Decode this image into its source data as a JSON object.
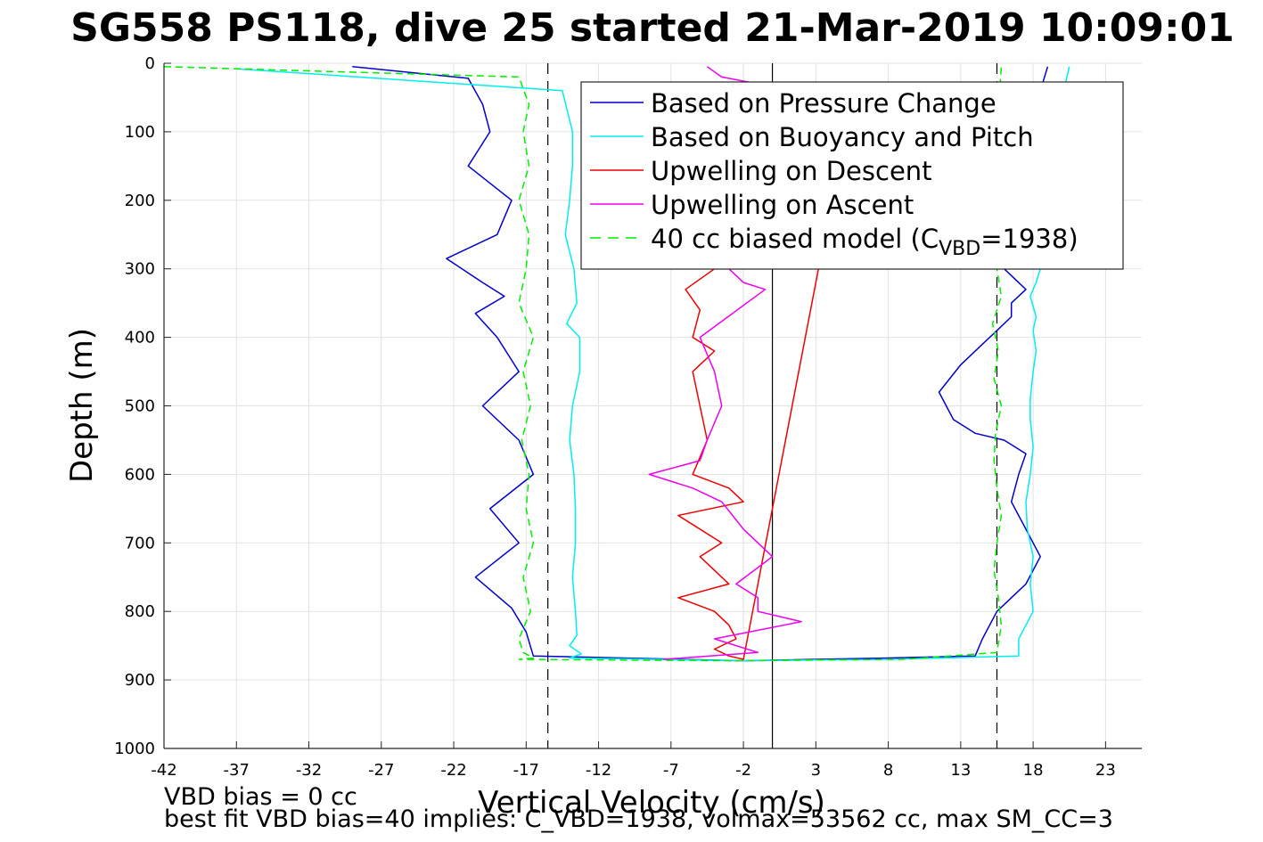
{
  "chart_data": {
    "type": "line",
    "title": "SG558 PS118, dive 25 started 21-Mar-2019 10:09:01",
    "xlabel": "Vertical Velocity (cm/s)",
    "ylabel": "Depth (m)",
    "xlim": [
      -42,
      25.5
    ],
    "ylim": [
      0,
      1000
    ],
    "y_reversed": true,
    "grid": true,
    "x_ticks": [
      "-42",
      "-37",
      "-32",
      "-27",
      "-22",
      "-17",
      "-12",
      "-7",
      "-2",
      "3",
      "8",
      "13",
      "18",
      "23"
    ],
    "y_ticks": [
      "0",
      "100",
      "200",
      "300",
      "400",
      "500",
      "600",
      "700",
      "800",
      "900",
      "1000"
    ],
    "legend_position": "top-right",
    "reference_lines": [
      {
        "x": 0,
        "style": "solid",
        "color": "#000000"
      },
      {
        "x": -15.5,
        "style": "dashed",
        "color": "#000000"
      },
      {
        "x": 15.5,
        "style": "dashed",
        "color": "#000000"
      }
    ],
    "legend": [
      {
        "text": "Based on Pressure Change",
        "color": "#0000cc",
        "style": "solid"
      },
      {
        "text": "Based on Buoyancy and Pitch",
        "color": "#00eeee",
        "style": "solid"
      },
      {
        "text": "Upwelling on Descent",
        "color": "#ee0000",
        "style": "solid"
      },
      {
        "text": "Upwelling on Ascent",
        "color": "#ee00ee",
        "style": "solid"
      },
      {
        "text_before": "40 cc biased model (C",
        "subscript": "VBD",
        "text_after": "=1938)",
        "color": "#00ee00",
        "style": "dashed"
      }
    ],
    "series": [
      {
        "name": "Based on Pressure Change",
        "color": "#0000cc",
        "dash": false,
        "width": 1.5,
        "x": [
          -29,
          -21,
          -20,
          -19.5,
          -21,
          -18,
          -19,
          -22.5,
          -20,
          -18.5,
          -20.5,
          -19,
          -17.5,
          -20,
          -17.5,
          -16.5,
          -19.5,
          -17.5,
          -20.5,
          -18,
          -17,
          -16.5,
          -2,
          8,
          14,
          14.5,
          15.5,
          17.5,
          18.5,
          17.5,
          16.5,
          17,
          17.5,
          16,
          14,
          12.5,
          11.5,
          13,
          14.5,
          15.5,
          16.5,
          16.5,
          17.5,
          16,
          16.5,
          16.5,
          19,
          23.5,
          18,
          18.5,
          19
        ],
        "y": [
          5,
          22,
          60,
          100,
          150,
          200,
          250,
          285,
          320,
          340,
          365,
          400,
          450,
          500,
          550,
          600,
          650,
          700,
          750,
          795,
          830,
          865,
          872,
          868,
          865,
          840,
          800,
          760,
          720,
          680,
          640,
          600,
          570,
          550,
          540,
          520,
          480,
          440,
          410,
          390,
          370,
          350,
          330,
          300,
          250,
          200,
          150,
          115,
          80,
          40,
          5
        ]
      },
      {
        "name": "Based on Buoyancy and Pitch",
        "color": "#00eeee",
        "dash": false,
        "width": 1.5,
        "x": [
          -37,
          -14.5,
          -13.8,
          -13.8,
          -14,
          -14.3,
          -13.7,
          -13.5,
          -14.2,
          -13.3,
          -13.3,
          -13.8,
          -14,
          -13.7,
          -13.6,
          -13.6,
          -13.8,
          -13.6,
          -13.5,
          -14,
          -13.2,
          -14,
          -2,
          8,
          17,
          17,
          18,
          17.8,
          18,
          17.6,
          17.5,
          17.8,
          18,
          17.8,
          17.8,
          18,
          18.2,
          18,
          18.2,
          17.8,
          18.2,
          18.5,
          19,
          20,
          18,
          18,
          20,
          20.5
        ],
        "y": [
          8,
          40,
          100,
          150,
          200,
          250,
          300,
          350,
          380,
          400,
          450,
          500,
          550,
          600,
          650,
          700,
          750,
          800,
          835,
          850,
          862,
          868,
          872,
          870,
          865,
          840,
          800,
          760,
          720,
          680,
          640,
          600,
          560,
          520,
          490,
          450,
          420,
          390,
          370,
          340,
          320,
          300,
          250,
          200,
          150,
          100,
          50,
          5
        ]
      },
      {
        "name": "40 cc biased model (CVBD=1938)",
        "color": "#00ee00",
        "dash": true,
        "width": 1.5,
        "x": [
          -42,
          -17.5,
          -16.8,
          -17.2,
          -16.8,
          -17.5,
          -16.8,
          -17,
          -17.5,
          -16.5,
          -17.2,
          -16.7,
          -17.3,
          -16.8,
          -17,
          -16.5,
          -17.2,
          -16.7,
          -17.5,
          -17.2,
          -16.5,
          -17.5,
          -3,
          9,
          15.5,
          15.8,
          15.6,
          15.3,
          15.5,
          15.8,
          15.5,
          15.3,
          15.4,
          15.8,
          15.3,
          15.6,
          15.2,
          15.8,
          15.5,
          15.6,
          15.5,
          15.8
        ],
        "y": [
          5,
          20,
          60,
          100,
          150,
          200,
          250,
          300,
          350,
          400,
          450,
          500,
          550,
          600,
          650,
          700,
          750,
          800,
          840,
          860,
          868,
          870,
          872,
          870,
          860,
          820,
          780,
          740,
          700,
          660,
          620,
          580,
          540,
          500,
          460,
          420,
          380,
          340,
          300,
          200,
          100,
          5
        ]
      },
      {
        "name": "Upwelling on Descent",
        "color": "#ee0000",
        "dash": false,
        "width": 1.5,
        "x": [
          -4,
          -6,
          -5,
          -5.5,
          -4,
          -5.5,
          -5,
          -4.5,
          -5.5,
          -3,
          -2,
          -6.5,
          -3.5,
          -5,
          -3,
          -6.5,
          -4,
          -3,
          -2.5,
          -4,
          -3,
          -2,
          5,
          15,
          19.5
        ],
        "y": [
          300,
          330,
          360,
          400,
          420,
          450,
          500,
          550,
          600,
          620,
          640,
          660,
          700,
          720,
          760,
          780,
          800,
          820,
          840,
          855,
          865,
          870,
          100,
          70,
          60
        ]
      },
      {
        "name": "Upwelling on Ascent",
        "color": "#ee00ee",
        "dash": false,
        "width": 1.5,
        "x": [
          -4.5,
          -3.5,
          -1,
          -3,
          -2,
          -0.5,
          -5,
          -4,
          -3.5,
          -4.5,
          -5,
          -8.5,
          -5.5,
          -3.5,
          -2,
          0,
          -2.5,
          -1,
          -1,
          2,
          -4,
          -1,
          -7.5
        ],
        "y": [
          5,
          20,
          30,
          300,
          320,
          330,
          400,
          450,
          500,
          550,
          580,
          600,
          620,
          640,
          680,
          720,
          760,
          780,
          800,
          815,
          840,
          860,
          870
        ]
      }
    ],
    "footer_line1": "VBD bias = 0 cc",
    "footer_line2": "best fit VBD bias=40 implies: C_VBD=1938, volmax=53562 cc, max SM_CC=3"
  }
}
